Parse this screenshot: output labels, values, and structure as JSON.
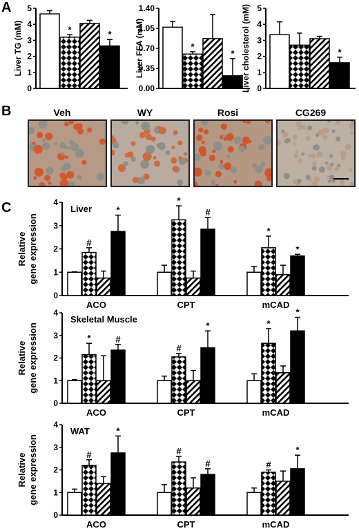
{
  "panels": {
    "a_letter": "A",
    "b_letter": "B",
    "c_letter": "C"
  },
  "micrographs": [
    {
      "label": "Veh",
      "tint": "#b69a86",
      "spot": "#d5572c"
    },
    {
      "label": "WY",
      "tint": "#b9ab9f",
      "spot": "#cf6a3d"
    },
    {
      "label": "Rosi",
      "tint": "#b39884",
      "spot": "#d2552a"
    },
    {
      "label": "CG269",
      "tint": "#bdb1a4",
      "spot": "#b99d86"
    }
  ],
  "patterns": [
    "open",
    "diamond",
    "hatched",
    "solid"
  ],
  "chart_data": [
    {
      "type": "bar",
      "id": "liver-tg",
      "ylabel": "Liver TG (mM)",
      "ylim": [
        0,
        5
      ],
      "yticks": [
        "0",
        "1",
        "2",
        "3",
        "4",
        "5"
      ],
      "values": [
        4.65,
        3.2,
        4.05,
        2.65
      ],
      "errors": [
        0.2,
        0.15,
        0.2,
        0.4
      ],
      "marks": [
        "",
        "*",
        "",
        "*"
      ]
    },
    {
      "type": "bar",
      "id": "liver-ffa",
      "ylabel": "Liver FFA (mM)",
      "ylim": [
        0,
        1.4
      ],
      "yticks": [
        "0.00",
        "0.35",
        "0.70",
        "1.05",
        "1.40"
      ],
      "values": [
        1.07,
        0.6,
        0.87,
        0.22
      ],
      "errors": [
        0.1,
        0.04,
        0.42,
        0.3
      ],
      "marks": [
        "",
        "*",
        "",
        "*"
      ]
    },
    {
      "type": "bar",
      "id": "liver-cholesterol",
      "ylabel": "Liver cholesterol (mM)",
      "ylim": [
        0,
        5
      ],
      "yticks": [
        "0",
        "1",
        "2",
        "3",
        "4",
        "5"
      ],
      "values": [
        3.35,
        2.7,
        3.1,
        1.6
      ],
      "errors": [
        0.8,
        0.75,
        0.15,
        0.35
      ],
      "marks": [
        "",
        "",
        "",
        "*"
      ]
    },
    {
      "type": "bar",
      "id": "liver-gene",
      "title": "Liver",
      "ylabel": "Relative gene expression",
      "ylim": [
        0,
        4
      ],
      "yticks": [
        "0",
        "1",
        "2",
        "3",
        "4"
      ],
      "groups": [
        "ACO",
        "CPT",
        "mCAD"
      ],
      "values": [
        [
          1.0,
          1.85,
          0.75,
          2.75
        ],
        [
          1.0,
          3.25,
          0.75,
          2.85
        ],
        [
          1.0,
          2.05,
          0.9,
          1.7
        ]
      ],
      "errors": [
        [
          0.02,
          0.2,
          0.3,
          0.7
        ],
        [
          0.3,
          0.6,
          0.3,
          0.5
        ],
        [
          0.25,
          0.5,
          0.4,
          0.07
        ]
      ],
      "marks": [
        [
          "",
          "#",
          "",
          "*"
        ],
        [
          "",
          "*",
          "",
          "#"
        ],
        [
          "",
          "*",
          "",
          "*"
        ]
      ]
    },
    {
      "type": "bar",
      "id": "muscle-gene",
      "title": "Skeletal Muscle",
      "ylabel": "Relative gene expression",
      "ylim": [
        0,
        4
      ],
      "yticks": [
        "0",
        "1",
        "2",
        "3",
        "4"
      ],
      "groups": [
        "ACO",
        "CPT",
        "mCAD"
      ],
      "values": [
        [
          1.0,
          2.15,
          1.0,
          2.35
        ],
        [
          1.0,
          2.05,
          1.0,
          2.45
        ],
        [
          1.0,
          2.65,
          1.35,
          3.2
        ]
      ],
      "errors": [
        [
          0.05,
          0.5,
          1.1,
          0.25
        ],
        [
          0.2,
          0.15,
          0.45,
          0.75
        ],
        [
          0.3,
          0.65,
          0.3,
          0.6
        ]
      ],
      "marks": [
        [
          "",
          "*",
          "",
          "#"
        ],
        [
          "",
          "#",
          "",
          "*"
        ],
        [
          "",
          "*",
          "",
          "*"
        ]
      ]
    },
    {
      "type": "bar",
      "id": "wat-gene",
      "title": "WAT",
      "ylabel": "Relative gene expression",
      "ylim": [
        0,
        4
      ],
      "yticks": [
        "0",
        "1",
        "2",
        "3",
        "4"
      ],
      "groups": [
        "ACO",
        "CPT",
        "mCAD"
      ],
      "values": [
        [
          1.0,
          2.2,
          1.4,
          2.75
        ],
        [
          1.0,
          2.35,
          1.2,
          1.8
        ],
        [
          1.0,
          1.9,
          1.5,
          2.05
        ]
      ],
      "errors": [
        [
          0.15,
          0.25,
          0.3,
          0.75
        ],
        [
          0.35,
          0.25,
          0.45,
          0.25
        ],
        [
          0.2,
          0.1,
          0.45,
          0.6
        ]
      ],
      "marks": [
        [
          "",
          "#",
          "",
          "*"
        ],
        [
          "",
          "#",
          "",
          "#"
        ],
        [
          "",
          "#",
          "",
          "*"
        ]
      ]
    }
  ]
}
